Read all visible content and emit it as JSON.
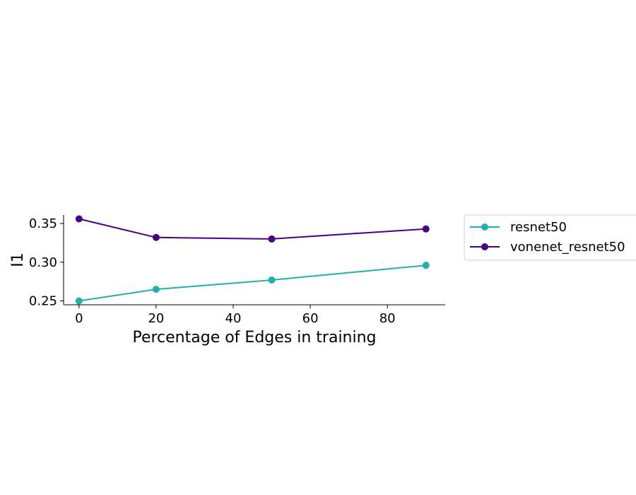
{
  "chart_data": {
    "type": "line",
    "title": "",
    "xlabel": "Percentage of Edges in training",
    "ylabel": "I1",
    "x": [
      0,
      20,
      50,
      90
    ],
    "xlim": [
      -4,
      95
    ],
    "ylim": [
      0.245,
      0.361
    ],
    "xticks": [
      0,
      20,
      40,
      60,
      80
    ],
    "yticks": [
      0.25,
      0.3,
      0.35
    ],
    "xtick_labels": [
      "0",
      "20",
      "40",
      "60",
      "80"
    ],
    "ytick_labels": [
      "0.25",
      "0.30",
      "0.35"
    ],
    "grid": false,
    "legend_position": "outside-right",
    "series": [
      {
        "name": "resnet50",
        "color": "#20b2aa",
        "values": [
          0.25,
          0.265,
          0.277,
          0.296
        ]
      },
      {
        "name": "vonenet_resnet50",
        "color": "#4b0082",
        "values": [
          0.356,
          0.332,
          0.33,
          0.343
        ]
      }
    ]
  }
}
